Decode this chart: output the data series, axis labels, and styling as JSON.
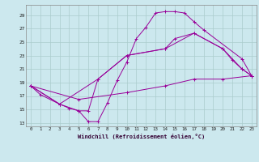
{
  "title": "",
  "xlabel": "Windchill (Refroidissement éolien,°C)",
  "background_color": "#cce8ee",
  "line_color": "#990099",
  "grid_color": "#aacccc",
  "xlim": [
    -0.5,
    23.5
  ],
  "ylim": [
    12.5,
    30.5
  ],
  "yticks": [
    13,
    15,
    17,
    19,
    21,
    23,
    25,
    27,
    29
  ],
  "xticks": [
    0,
    1,
    2,
    3,
    4,
    5,
    6,
    7,
    8,
    9,
    10,
    11,
    12,
    13,
    14,
    15,
    16,
    17,
    18,
    19,
    20,
    21,
    22,
    23
  ],
  "series": [
    {
      "x": [
        0,
        1,
        3,
        4,
        5,
        6,
        7,
        8,
        9,
        10,
        11,
        12,
        13,
        14,
        15,
        16,
        17,
        18,
        22,
        23
      ],
      "y": [
        18.5,
        17.2,
        15.8,
        15.2,
        14.8,
        13.2,
        13.2,
        16.0,
        19.3,
        22.0,
        25.5,
        27.2,
        29.3,
        29.5,
        29.5,
        29.3,
        28.0,
        26.8,
        22.5,
        20.0
      ]
    },
    {
      "x": [
        0,
        3,
        5,
        6,
        7,
        10,
        14,
        15,
        17,
        20,
        21,
        22,
        23
      ],
      "y": [
        18.5,
        15.8,
        14.8,
        14.8,
        19.5,
        23.0,
        24.0,
        25.5,
        26.3,
        24.0,
        22.3,
        21.0,
        20.0
      ]
    },
    {
      "x": [
        0,
        3,
        7,
        10,
        14,
        17,
        20,
        22,
        23
      ],
      "y": [
        18.5,
        15.8,
        19.5,
        23.0,
        24.0,
        26.3,
        24.0,
        21.0,
        20.0
      ]
    },
    {
      "x": [
        0,
        5,
        10,
        14,
        17,
        20,
        23
      ],
      "y": [
        18.5,
        16.5,
        17.5,
        18.5,
        19.5,
        19.5,
        20.0
      ]
    }
  ]
}
